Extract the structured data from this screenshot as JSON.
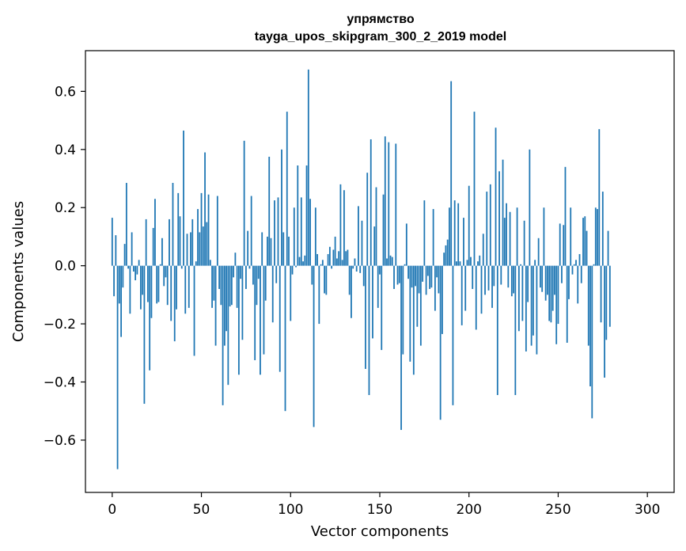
{
  "chart_data": {
    "type": "bar",
    "title": "упрямство",
    "subtitle": "tayga_upos_skipgram_300_2_2019 model",
    "xlabel": "Vector components",
    "ylabel": "Components values",
    "xlim": [
      -15,
      315
    ],
    "ylim": [
      -0.78,
      0.74
    ],
    "xticks": [
      0,
      50,
      100,
      150,
      200,
      250,
      300
    ],
    "yticks": [
      -0.6,
      -0.4,
      -0.2,
      0.0,
      0.2,
      0.4,
      0.6
    ],
    "ytick_labels": [
      "−0.6",
      "−0.4",
      "−0.2",
      "0.0",
      "0.2",
      "0.4",
      "0.6"
    ],
    "bar_color": "#1f77b4",
    "values": [
      0.165,
      -0.105,
      0.105,
      -0.7,
      -0.13,
      -0.245,
      -0.075,
      0.075,
      0.285,
      -0.01,
      -0.165,
      0.115,
      -0.02,
      -0.05,
      -0.03,
      0.02,
      -0.15,
      -0.1,
      -0.475,
      0.16,
      -0.125,
      -0.36,
      -0.18,
      0.13,
      0.23,
      -0.13,
      -0.125,
      0.005,
      0.095,
      -0.07,
      -0.04,
      -0.135,
      0.16,
      -0.19,
      0.285,
      -0.26,
      -0.15,
      0.25,
      0.17,
      -0.01,
      0.465,
      -0.165,
      0.11,
      -0.145,
      0.115,
      0.16,
      -0.31,
      0.015,
      0.195,
      0.115,
      0.25,
      0.135,
      0.39,
      0.15,
      0.245,
      0.02,
      -0.145,
      -0.12,
      -0.275,
      0.24,
      -0.08,
      -0.135,
      -0.48,
      -0.275,
      -0.225,
      -0.41,
      -0.14,
      -0.135,
      -0.04,
      0.045,
      -0.145,
      -0.375,
      -0.045,
      -0.255,
      0.43,
      -0.08,
      0.12,
      -0.01,
      0.24,
      -0.065,
      -0.325,
      -0.135,
      -0.045,
      -0.375,
      0.115,
      -0.305,
      -0.12,
      0.1,
      0.375,
      0.095,
      -0.195,
      0.225,
      -0.06,
      0.235,
      -0.365,
      0.4,
      0.115,
      -0.5,
      0.53,
      0.1,
      -0.19,
      -0.03,
      0.2,
      -0.005,
      0.345,
      0.03,
      0.235,
      0.015,
      0.035,
      0.345,
      0.675,
      0.23,
      -0.065,
      -0.555,
      0.2,
      0.04,
      -0.2,
      0.005,
      0.02,
      -0.095,
      -0.1,
      0.04,
      0.065,
      -0.01,
      0.055,
      0.1,
      0.025,
      0.05,
      0.28,
      0.02,
      0.26,
      0.05,
      0.055,
      -0.1,
      -0.18,
      -0.01,
      0.025,
      -0.02,
      0.205,
      -0.025,
      0.155,
      -0.07,
      -0.355,
      0.32,
      -0.445,
      0.435,
      -0.25,
      0.135,
      0.27,
      -0.145,
      -0.03,
      -0.29,
      0.245,
      0.445,
      0.025,
      0.425,
      0.035,
      0.03,
      -0.08,
      0.42,
      -0.065,
      -0.06,
      -0.565,
      -0.305,
      0.005,
      0.145,
      -0.045,
      -0.33,
      -0.075,
      -0.375,
      -0.07,
      -0.21,
      -0.095,
      -0.275,
      -0.055,
      0.225,
      -0.1,
      -0.035,
      -0.08,
      -0.075,
      0.195,
      -0.155,
      -0.04,
      -0.095,
      -0.53,
      -0.235,
      0.045,
      0.07,
      0.09,
      0.2,
      0.635,
      -0.48,
      0.225,
      0.015,
      0.215,
      0.015,
      -0.205,
      0.165,
      -0.155,
      0.02,
      0.275,
      0.03,
      -0.08,
      0.53,
      -0.22,
      0.015,
      0.035,
      -0.165,
      0.11,
      -0.1,
      0.255,
      -0.085,
      0.28,
      -0.145,
      -0.07,
      0.475,
      -0.445,
      0.325,
      -0.065,
      0.365,
      0.165,
      0.215,
      -0.075,
      0.185,
      -0.105,
      -0.095,
      -0.445,
      0.2,
      -0.225,
      0.005,
      -0.19,
      0.155,
      -0.295,
      -0.125,
      0.4,
      -0.275,
      -0.24,
      0.02,
      -0.305,
      0.095,
      -0.075,
      -0.09,
      0.2,
      -0.12,
      -0.1,
      -0.19,
      -0.195,
      -0.155,
      -0.1,
      -0.27,
      -0.2,
      0.145,
      -0.06,
      0.14,
      0.34,
      -0.265,
      -0.115,
      0.2,
      -0.03,
      0.005,
      0.02,
      -0.13,
      0.04,
      -0.06,
      0.165,
      0.17,
      0.12,
      -0.275,
      -0.415,
      -0.525,
      0.005,
      0.2,
      0.195,
      0.47,
      -0.195,
      0.255,
      -0.385,
      -0.255,
      0.12,
      -0.21
    ]
  }
}
